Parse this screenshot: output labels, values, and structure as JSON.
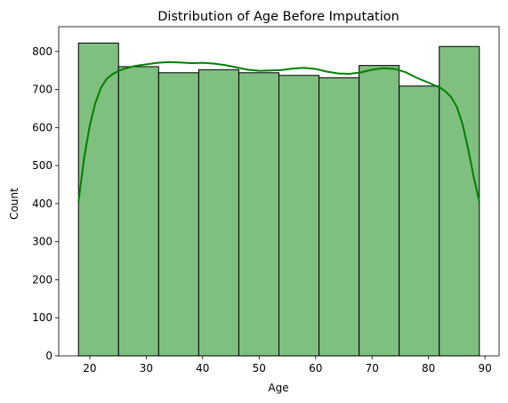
{
  "chart_data": {
    "type": "histogram",
    "title": "Distribution of Age Before Imputation",
    "xlabel": "Age",
    "ylabel": "Count",
    "xlim": [
      14.5,
      92.5
    ],
    "ylim": [
      0,
      865
    ],
    "x_ticks": [
      20,
      30,
      40,
      50,
      60,
      70,
      80,
      90
    ],
    "y_ticks": [
      0,
      100,
      200,
      300,
      400,
      500,
      600,
      700,
      800
    ],
    "bin_edges": [
      18,
      25.1,
      32.2,
      39.3,
      46.4,
      53.5,
      60.6,
      67.7,
      74.8,
      81.9,
      89
    ],
    "values": [
      822,
      760,
      744,
      752,
      744,
      737,
      731,
      763,
      709,
      813
    ],
    "bar_color": "#7fbf7f",
    "bar_edge_color": "#000000",
    "kde": {
      "color": "#008000",
      "x": [
        18,
        19,
        20,
        21,
        22,
        23,
        24,
        25,
        26,
        28,
        30,
        32,
        34,
        36,
        38,
        40,
        42,
        44,
        46,
        48,
        50,
        52,
        54,
        56,
        58,
        60,
        62,
        64,
        66,
        68,
        70,
        72,
        74,
        76,
        78,
        80,
        82,
        83,
        84,
        85,
        86,
        87,
        88,
        89
      ],
      "y": [
        405,
        520,
        605,
        665,
        705,
        728,
        740,
        748,
        754,
        762,
        766,
        770,
        772,
        771,
        769,
        770,
        768,
        764,
        758,
        752,
        749,
        750,
        751,
        755,
        757,
        754,
        747,
        742,
        741,
        745,
        752,
        756,
        754,
        745,
        730,
        718,
        705,
        695,
        680,
        655,
        610,
        545,
        470,
        405
      ]
    }
  }
}
